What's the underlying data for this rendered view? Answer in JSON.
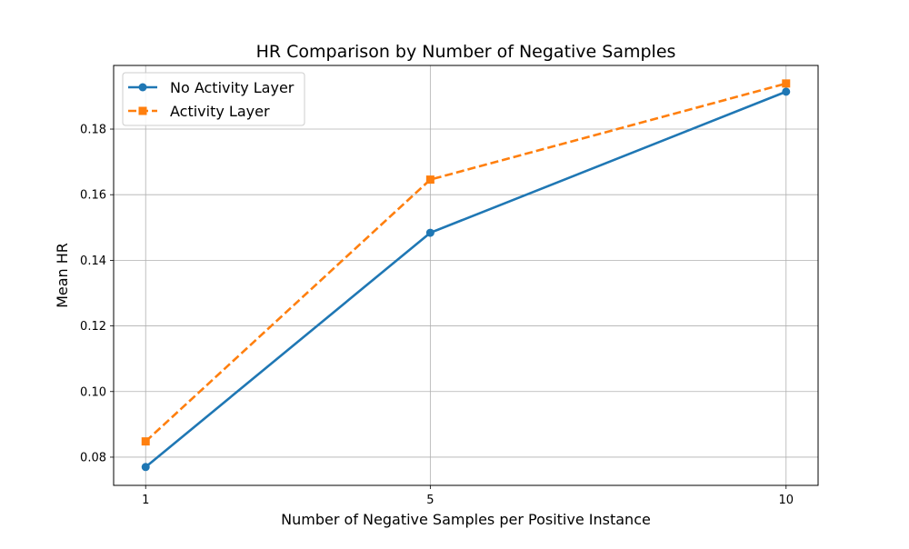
{
  "chart_data": {
    "type": "line",
    "title": "HR Comparison by Number of Negative Samples",
    "xlabel": "Number of Negative Samples per Positive Instance",
    "ylabel": "Mean HR",
    "x": [
      1,
      5,
      10
    ],
    "x_tick_labels": [
      "1",
      "5",
      "10"
    ],
    "y_ticks": [
      0.08,
      0.1,
      0.12,
      0.14,
      0.16,
      0.18
    ],
    "y_tick_labels": [
      "0.08",
      "0.10",
      "0.12",
      "0.14",
      "0.16",
      "0.18"
    ],
    "xlim": [
      0.55,
      10.45
    ],
    "ylim": [
      0.0714,
      0.1994
    ],
    "grid": true,
    "legend_position": "upper-left",
    "series": [
      {
        "name": "No Activity Layer",
        "values": [
          0.077,
          0.1484,
          0.1914
        ],
        "color": "#1f77b4",
        "line_style": "solid",
        "marker": "circle"
      },
      {
        "name": "Activity Layer",
        "values": [
          0.0848,
          0.1646,
          0.1939
        ],
        "color": "#ff7f0e",
        "line_style": "dashed",
        "marker": "square"
      }
    ]
  }
}
